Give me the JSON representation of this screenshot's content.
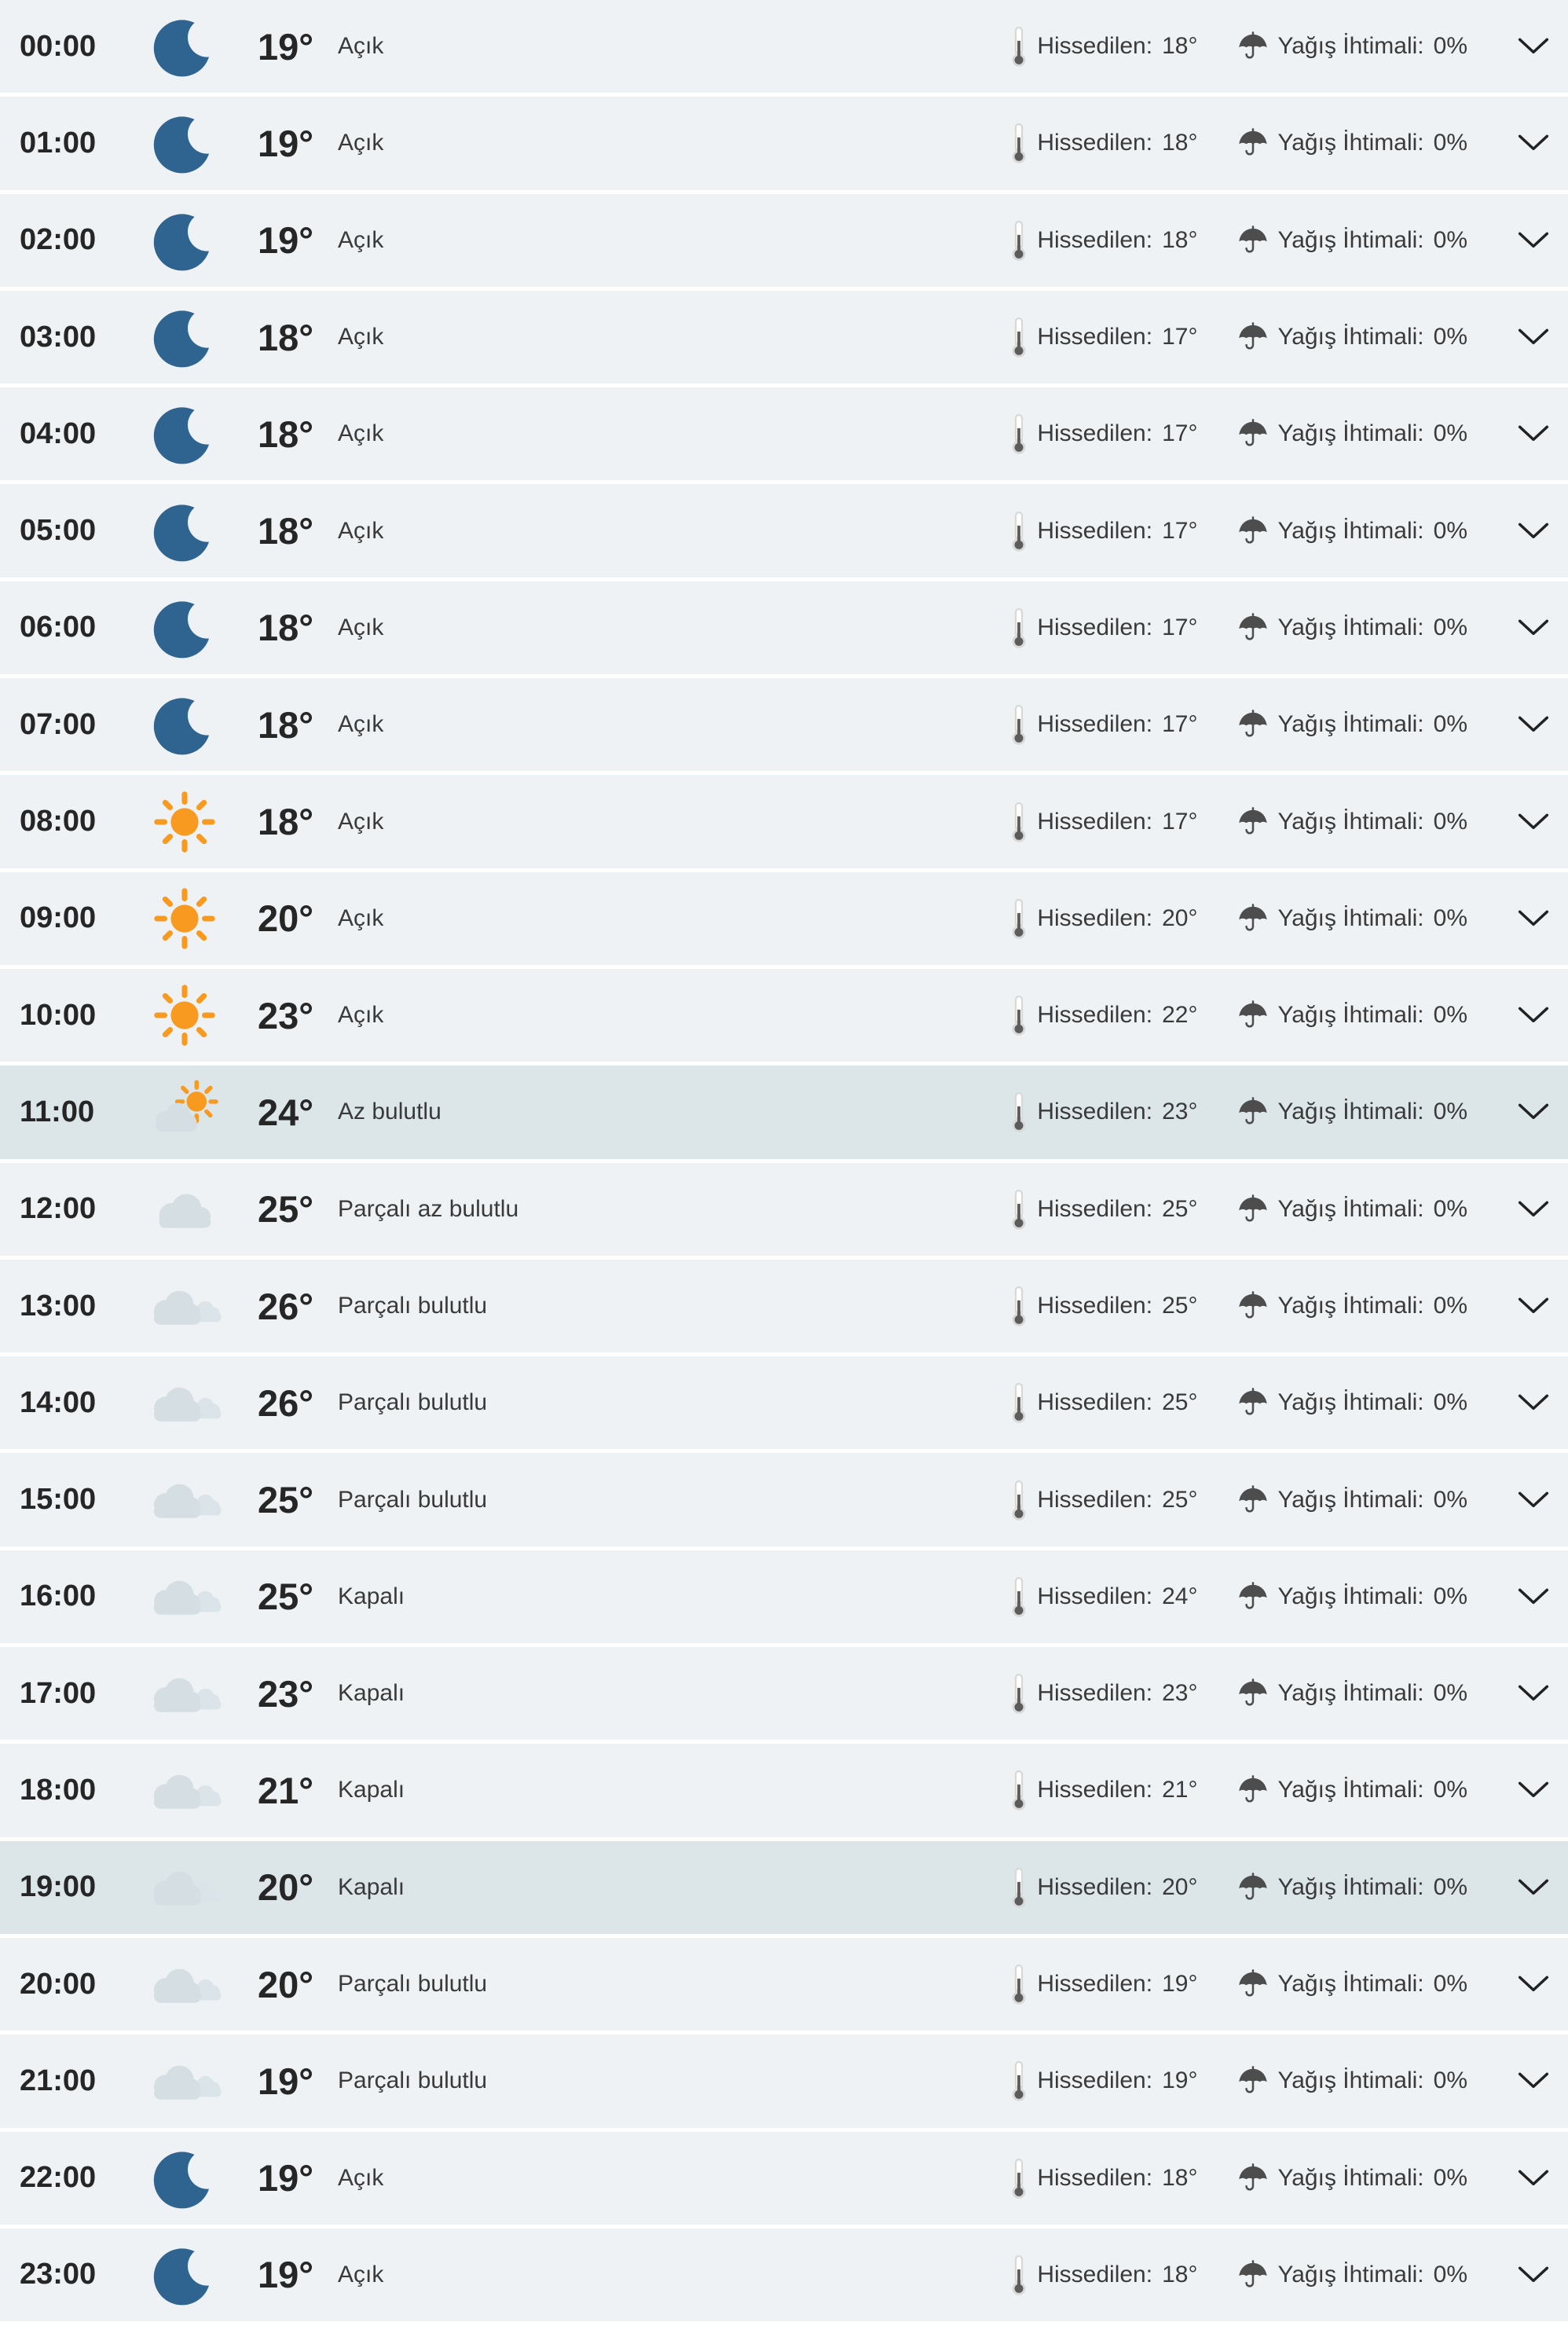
{
  "table": {
    "feels_label": "Hissedilen:",
    "rain_label": "Yağış İhtimali:",
    "rows": [
      {
        "time": "00:00",
        "icon": "moon",
        "temp": "19°",
        "condition": "Açık",
        "feels": "18°",
        "rain": "0%",
        "highlighted": false
      },
      {
        "time": "01:00",
        "icon": "moon",
        "temp": "19°",
        "condition": "Açık",
        "feels": "18°",
        "rain": "0%",
        "highlighted": false
      },
      {
        "time": "02:00",
        "icon": "moon",
        "temp": "19°",
        "condition": "Açık",
        "feels": "18°",
        "rain": "0%",
        "highlighted": false
      },
      {
        "time": "03:00",
        "icon": "moon",
        "temp": "18°",
        "condition": "Açık",
        "feels": "17°",
        "rain": "0%",
        "highlighted": false
      },
      {
        "time": "04:00",
        "icon": "moon",
        "temp": "18°",
        "condition": "Açık",
        "feels": "17°",
        "rain": "0%",
        "highlighted": false
      },
      {
        "time": "05:00",
        "icon": "moon",
        "temp": "18°",
        "condition": "Açık",
        "feels": "17°",
        "rain": "0%",
        "highlighted": false
      },
      {
        "time": "06:00",
        "icon": "moon",
        "temp": "18°",
        "condition": "Açık",
        "feels": "17°",
        "rain": "0%",
        "highlighted": false
      },
      {
        "time": "07:00",
        "icon": "moon",
        "temp": "18°",
        "condition": "Açık",
        "feels": "17°",
        "rain": "0%",
        "highlighted": false
      },
      {
        "time": "08:00",
        "icon": "sun",
        "temp": "18°",
        "condition": "Açık",
        "feels": "17°",
        "rain": "0%",
        "highlighted": false
      },
      {
        "time": "09:00",
        "icon": "sun",
        "temp": "20°",
        "condition": "Açık",
        "feels": "20°",
        "rain": "0%",
        "highlighted": false
      },
      {
        "time": "10:00",
        "icon": "sun",
        "temp": "23°",
        "condition": "Açık",
        "feels": "22°",
        "rain": "0%",
        "highlighted": false
      },
      {
        "time": "11:00",
        "icon": "sun-cloud",
        "temp": "24°",
        "condition": "Az bulutlu",
        "feels": "23°",
        "rain": "0%",
        "highlighted": true
      },
      {
        "time": "12:00",
        "icon": "cloud",
        "temp": "25°",
        "condition": "Parçalı az bulutlu",
        "feels": "25°",
        "rain": "0%",
        "highlighted": false
      },
      {
        "time": "13:00",
        "icon": "clouds",
        "temp": "26°",
        "condition": "Parçalı bulutlu",
        "feels": "25°",
        "rain": "0%",
        "highlighted": false
      },
      {
        "time": "14:00",
        "icon": "clouds",
        "temp": "26°",
        "condition": "Parçalı bulutlu",
        "feels": "25°",
        "rain": "0%",
        "highlighted": false
      },
      {
        "time": "15:00",
        "icon": "clouds",
        "temp": "25°",
        "condition": "Parçalı bulutlu",
        "feels": "25°",
        "rain": "0%",
        "highlighted": false
      },
      {
        "time": "16:00",
        "icon": "clouds",
        "temp": "25°",
        "condition": "Kapalı",
        "feels": "24°",
        "rain": "0%",
        "highlighted": false
      },
      {
        "time": "17:00",
        "icon": "clouds",
        "temp": "23°",
        "condition": "Kapalı",
        "feels": "23°",
        "rain": "0%",
        "highlighted": false
      },
      {
        "time": "18:00",
        "icon": "clouds",
        "temp": "21°",
        "condition": "Kapalı",
        "feels": "21°",
        "rain": "0%",
        "highlighted": false
      },
      {
        "time": "19:00",
        "icon": "clouds",
        "temp": "20°",
        "condition": "Kapalı",
        "feels": "20°",
        "rain": "0%",
        "highlighted": true
      },
      {
        "time": "20:00",
        "icon": "clouds",
        "temp": "20°",
        "condition": "Parçalı bulutlu",
        "feels": "19°",
        "rain": "0%",
        "highlighted": false
      },
      {
        "time": "21:00",
        "icon": "clouds",
        "temp": "19°",
        "condition": "Parçalı bulutlu",
        "feels": "19°",
        "rain": "0%",
        "highlighted": false
      },
      {
        "time": "22:00",
        "icon": "moon",
        "temp": "19°",
        "condition": "Açık",
        "feels": "18°",
        "rain": "0%",
        "highlighted": false
      },
      {
        "time": "23:00",
        "icon": "moon",
        "temp": "19°",
        "condition": "Açık",
        "feels": "18°",
        "rain": "0%",
        "highlighted": false
      }
    ]
  },
  "colors": {
    "row_bg": "#eef2f4",
    "row_bg_highlight": "#dce6e8",
    "separator": "#ffffff",
    "text_dark": "#262626",
    "text_medium": "#3a3a3a",
    "moon": "#2f6390",
    "sun": "#f79a1f",
    "cloud": "#d4dee3",
    "cloud_small": "#dbe4e8",
    "icon_gray": "#4d4d4d",
    "thermo_outer": "#d8d8d8",
    "thermo_inner": "#5c5c5c",
    "chevron": "#222222"
  }
}
